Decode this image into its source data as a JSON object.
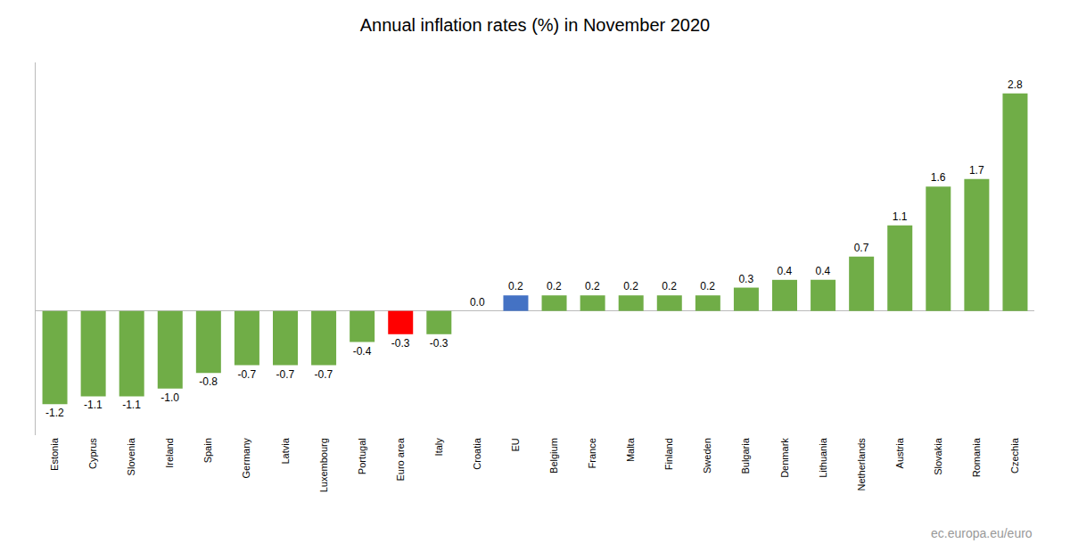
{
  "chart_data": {
    "type": "bar",
    "title": "Annual inflation rates (%) in November 2020",
    "categories": [
      "Estonia",
      "Cyprus",
      "Slovenia",
      "Ireland",
      "Spain",
      "Germany",
      "Latvia",
      "Luxembourg",
      "Portugal",
      "Euro area",
      "Italy",
      "Croatia",
      "EU",
      "Belgium",
      "France",
      "Malta",
      "Finland",
      "Sweden",
      "Bulgaria",
      "Denmark",
      "Lithuania",
      "Netherlands",
      "Austria",
      "Slovakia",
      "Romania",
      "Czechia"
    ],
    "values": [
      -1.2,
      -1.1,
      -1.1,
      -1.0,
      -0.8,
      -0.7,
      -0.7,
      -0.7,
      -0.4,
      -0.3,
      -0.3,
      0.0,
      0.2,
      0.2,
      0.2,
      0.2,
      0.2,
      0.2,
      0.3,
      0.4,
      0.4,
      0.7,
      1.1,
      1.6,
      1.7,
      2.8
    ],
    "value_labels": [
      "-1.2",
      "-1.1",
      "-1.1",
      "-1.0",
      "-0.8",
      "-0.7",
      "-0.7",
      "-0.7",
      "-0.4",
      "-0.3",
      "-0.3",
      "0.0",
      "0.2",
      "0.2",
      "0.2",
      "0.2",
      "0.2",
      "0.2",
      "0.3",
      "0.4",
      "0.4",
      "0.7",
      "1.1",
      "1.6",
      "1.7",
      "2.8"
    ],
    "colors": [
      "#70AD47",
      "#70AD47",
      "#70AD47",
      "#70AD47",
      "#70AD47",
      "#70AD47",
      "#70AD47",
      "#70AD47",
      "#70AD47",
      "#FF0000",
      "#70AD47",
      "#70AD47",
      "#4472C4",
      "#70AD47",
      "#70AD47",
      "#70AD47",
      "#70AD47",
      "#70AD47",
      "#70AD47",
      "#70AD47",
      "#70AD47",
      "#70AD47",
      "#70AD47",
      "#70AD47",
      "#70AD47",
      "#70AD47"
    ],
    "ylim": [
      -1.6,
      3.2
    ],
    "grid": false,
    "data_labels": true,
    "tick_labels": "x",
    "annotations": [
      "ec.europa.eu/euro"
    ]
  }
}
